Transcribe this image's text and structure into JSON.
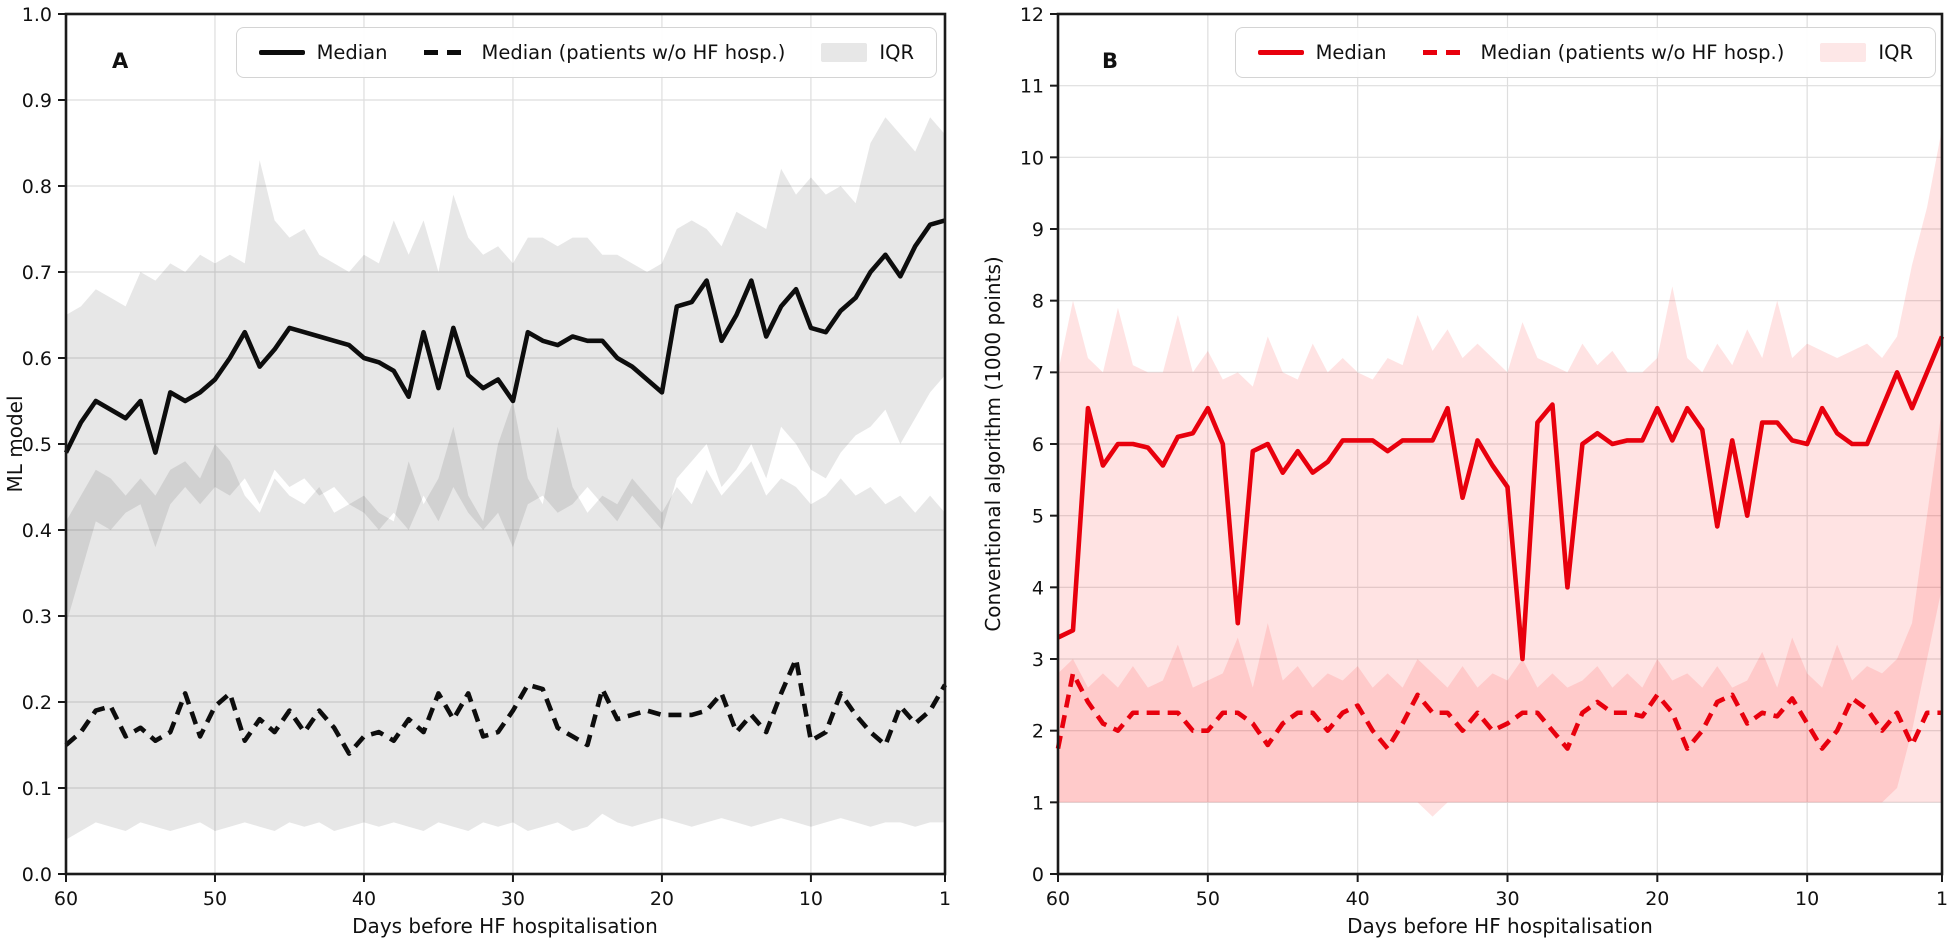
{
  "chart_data": [
    {
      "type": "line",
      "panel_label": "A",
      "xlabel": "Days before HF hospitalisation",
      "ylabel": "ML model",
      "x_reversed": true,
      "xticks": [
        60,
        50,
        40,
        30,
        20,
        10,
        1
      ],
      "ylim": [
        0.0,
        1.0
      ],
      "ytick_step": 0.1,
      "ytick_decimals": 1,
      "grid": true,
      "legend_position": "upper right",
      "legend": [
        {
          "label": "Median",
          "style": "solid"
        },
        {
          "label": "Median (patients w/o HF hosp.)",
          "style": "dashed"
        },
        {
          "label": "IQR",
          "style": "band"
        }
      ],
      "colors": {
        "line": "#0d0d0d",
        "band_fill": "#000000",
        "band_opacity": 0.095,
        "band_swatch": "#e7e7e7"
      },
      "days": [
        60,
        59,
        58,
        57,
        56,
        55,
        54,
        53,
        52,
        51,
        50,
        49,
        48,
        47,
        46,
        45,
        44,
        43,
        42,
        41,
        40,
        39,
        38,
        37,
        36,
        35,
        34,
        33,
        32,
        31,
        30,
        29,
        28,
        27,
        26,
        25,
        24,
        23,
        22,
        21,
        20,
        19,
        18,
        17,
        16,
        15,
        14,
        13,
        12,
        11,
        10,
        9,
        8,
        7,
        6,
        5,
        4,
        3,
        2,
        1
      ],
      "series": [
        {
          "name": "Median",
          "values": [
            0.49,
            0.525,
            0.55,
            0.54,
            0.53,
            0.55,
            0.49,
            0.56,
            0.55,
            0.56,
            0.575,
            0.6,
            0.63,
            0.59,
            0.61,
            0.635,
            0.63,
            0.625,
            0.62,
            0.615,
            0.6,
            0.595,
            0.585,
            0.555,
            0.63,
            0.565,
            0.635,
            0.58,
            0.565,
            0.575,
            0.55,
            0.63,
            0.62,
            0.615,
            0.625,
            0.62,
            0.62,
            0.6,
            0.59,
            0.575,
            0.56,
            0.66,
            0.665,
            0.69,
            0.62,
            0.65,
            0.69,
            0.625,
            0.66,
            0.68,
            0.635,
            0.63,
            0.655,
            0.67,
            0.7,
            0.72,
            0.695,
            0.73,
            0.755,
            0.76
          ]
        },
        {
          "name": "Median (patients w/o HF hosp.)",
          "values": [
            0.15,
            0.165,
            0.19,
            0.195,
            0.16,
            0.17,
            0.155,
            0.165,
            0.21,
            0.16,
            0.195,
            0.21,
            0.155,
            0.18,
            0.165,
            0.19,
            0.165,
            0.19,
            0.17,
            0.14,
            0.16,
            0.165,
            0.155,
            0.18,
            0.165,
            0.21,
            0.18,
            0.21,
            0.16,
            0.165,
            0.19,
            0.22,
            0.215,
            0.17,
            0.16,
            0.15,
            0.215,
            0.18,
            0.185,
            0.19,
            0.185,
            0.185,
            0.185,
            0.19,
            0.21,
            0.165,
            0.185,
            0.165,
            0.21,
            0.25,
            0.155,
            0.165,
            0.21,
            0.185,
            0.165,
            0.15,
            0.195,
            0.175,
            0.19,
            0.22
          ]
        }
      ],
      "iqr_median": {
        "upper": [
          0.65,
          0.66,
          0.68,
          0.67,
          0.66,
          0.7,
          0.69,
          0.71,
          0.7,
          0.72,
          0.71,
          0.72,
          0.71,
          0.83,
          0.76,
          0.74,
          0.75,
          0.72,
          0.71,
          0.7,
          0.72,
          0.71,
          0.76,
          0.72,
          0.76,
          0.7,
          0.79,
          0.74,
          0.72,
          0.73,
          0.71,
          0.74,
          0.74,
          0.73,
          0.74,
          0.74,
          0.72,
          0.72,
          0.71,
          0.7,
          0.71,
          0.75,
          0.76,
          0.75,
          0.73,
          0.77,
          0.76,
          0.75,
          0.82,
          0.79,
          0.81,
          0.79,
          0.8,
          0.78,
          0.85,
          0.88,
          0.86,
          0.84,
          0.88,
          0.86
        ],
        "lower": [
          0.29,
          0.35,
          0.41,
          0.4,
          0.42,
          0.43,
          0.38,
          0.43,
          0.45,
          0.43,
          0.45,
          0.44,
          0.46,
          0.43,
          0.47,
          0.45,
          0.46,
          0.44,
          0.45,
          0.43,
          0.42,
          0.4,
          0.42,
          0.4,
          0.44,
          0.41,
          0.45,
          0.42,
          0.4,
          0.42,
          0.38,
          0.43,
          0.44,
          0.42,
          0.43,
          0.45,
          0.43,
          0.41,
          0.44,
          0.42,
          0.4,
          0.46,
          0.48,
          0.5,
          0.45,
          0.47,
          0.5,
          0.46,
          0.52,
          0.5,
          0.47,
          0.46,
          0.49,
          0.51,
          0.52,
          0.54,
          0.5,
          0.53,
          0.56,
          0.58
        ]
      },
      "iqr_no_hosp": {
        "upper": [
          0.41,
          0.44,
          0.47,
          0.46,
          0.44,
          0.46,
          0.44,
          0.47,
          0.48,
          0.46,
          0.5,
          0.48,
          0.44,
          0.42,
          0.46,
          0.44,
          0.43,
          0.45,
          0.42,
          0.43,
          0.44,
          0.42,
          0.41,
          0.48,
          0.43,
          0.46,
          0.52,
          0.44,
          0.41,
          0.5,
          0.55,
          0.46,
          0.43,
          0.52,
          0.45,
          0.42,
          0.44,
          0.43,
          0.46,
          0.44,
          0.42,
          0.45,
          0.43,
          0.47,
          0.44,
          0.46,
          0.48,
          0.44,
          0.46,
          0.45,
          0.43,
          0.44,
          0.46,
          0.44,
          0.45,
          0.43,
          0.44,
          0.42,
          0.44,
          0.42
        ],
        "lower": [
          0.04,
          0.05,
          0.06,
          0.055,
          0.05,
          0.06,
          0.055,
          0.05,
          0.055,
          0.06,
          0.05,
          0.055,
          0.06,
          0.055,
          0.05,
          0.06,
          0.055,
          0.06,
          0.05,
          0.055,
          0.06,
          0.055,
          0.06,
          0.055,
          0.05,
          0.06,
          0.055,
          0.05,
          0.06,
          0.055,
          0.06,
          0.05,
          0.055,
          0.06,
          0.05,
          0.055,
          0.07,
          0.06,
          0.055,
          0.06,
          0.065,
          0.06,
          0.055,
          0.06,
          0.065,
          0.06,
          0.055,
          0.06,
          0.065,
          0.06,
          0.055,
          0.06,
          0.065,
          0.06,
          0.055,
          0.06,
          0.06,
          0.055,
          0.06,
          0.06
        ]
      }
    },
    {
      "type": "line",
      "panel_label": "B",
      "xlabel": "Days before HF hospitalisation",
      "ylabel": "Conventional algorithm (1000 points)",
      "x_reversed": true,
      "xticks": [
        60,
        50,
        40,
        30,
        20,
        10,
        1
      ],
      "ylim": [
        0,
        12
      ],
      "ytick_step": 1,
      "ytick_decimals": 0,
      "grid": true,
      "legend_position": "upper right",
      "legend": [
        {
          "label": "Median",
          "style": "solid"
        },
        {
          "label": "Median (patients w/o HF hosp.)",
          "style": "dashed"
        },
        {
          "label": "IQR",
          "style": "band"
        }
      ],
      "colors": {
        "line": "#e8000d",
        "band_fill": "#ff0000",
        "band_opacity": 0.11,
        "band_swatch": "#fde7e7"
      },
      "days": [
        60,
        59,
        58,
        57,
        56,
        55,
        54,
        53,
        52,
        51,
        50,
        49,
        48,
        47,
        46,
        45,
        44,
        43,
        42,
        41,
        40,
        39,
        38,
        37,
        36,
        35,
        34,
        33,
        32,
        31,
        30,
        29,
        28,
        27,
        26,
        25,
        24,
        23,
        22,
        21,
        20,
        19,
        18,
        17,
        16,
        15,
        14,
        13,
        12,
        11,
        10,
        9,
        8,
        7,
        6,
        5,
        4,
        3,
        2,
        1
      ],
      "series": [
        {
          "name": "Median",
          "values": [
            3.3,
            3.4,
            6.5,
            5.7,
            6.0,
            6.0,
            5.95,
            5.7,
            6.1,
            6.15,
            6.5,
            6.0,
            3.5,
            5.9,
            6.0,
            5.6,
            5.9,
            5.6,
            5.75,
            6.05,
            6.05,
            6.05,
            5.9,
            6.05,
            6.05,
            6.05,
            6.5,
            5.25,
            6.05,
            5.7,
            5.4,
            3.0,
            6.3,
            6.55,
            4.0,
            6.0,
            6.15,
            6.0,
            6.05,
            6.05,
            6.5,
            6.05,
            6.5,
            6.2,
            4.85,
            6.05,
            5.0,
            6.3,
            6.3,
            6.05,
            6.0,
            6.5,
            6.15,
            6.0,
            6.0,
            6.5,
            7.0,
            6.5,
            7.0,
            7.5
          ]
        },
        {
          "name": "Median (patients w/o HF hosp.)",
          "values": [
            1.75,
            2.8,
            2.4,
            2.1,
            2.0,
            2.25,
            2.25,
            2.25,
            2.25,
            2.0,
            2.0,
            2.25,
            2.25,
            2.1,
            1.8,
            2.1,
            2.25,
            2.25,
            2.0,
            2.25,
            2.35,
            2.0,
            1.75,
            2.1,
            2.5,
            2.25,
            2.25,
            2.0,
            2.25,
            2.0,
            2.1,
            2.25,
            2.25,
            2.0,
            1.75,
            2.25,
            2.4,
            2.25,
            2.25,
            2.2,
            2.5,
            2.25,
            1.75,
            2.0,
            2.4,
            2.5,
            2.1,
            2.25,
            2.2,
            2.45,
            2.1,
            1.75,
            2.0,
            2.45,
            2.3,
            2.0,
            2.25,
            1.8,
            2.25,
            2.25
          ]
        }
      ],
      "iqr_median": {
        "upper": [
          7.0,
          8.0,
          7.2,
          7.0,
          7.9,
          7.1,
          7.0,
          7.0,
          7.8,
          7.0,
          7.3,
          6.9,
          7.0,
          6.8,
          7.5,
          7.0,
          6.9,
          7.4,
          7.0,
          7.2,
          7.0,
          6.9,
          7.2,
          7.1,
          7.8,
          7.3,
          7.6,
          7.2,
          7.4,
          7.2,
          7.0,
          7.7,
          7.2,
          7.1,
          7.0,
          7.4,
          7.1,
          7.3,
          7.0,
          7.0,
          7.2,
          8.2,
          7.2,
          7.0,
          7.4,
          7.1,
          7.6,
          7.2,
          8.0,
          7.2,
          7.4,
          7.3,
          7.2,
          7.3,
          7.4,
          7.2,
          7.5,
          8.5,
          9.3,
          10.4
        ],
        "lower": [
          1,
          1,
          1,
          1,
          1,
          1,
          1,
          1,
          1,
          1,
          1,
          1,
          1,
          1,
          1,
          1,
          1,
          1,
          1,
          1,
          1,
          1,
          1,
          1,
          1,
          0.8,
          1,
          1,
          1,
          1,
          1,
          1,
          1,
          1,
          1,
          1,
          1,
          1,
          1,
          1,
          1,
          1,
          1,
          1,
          1,
          1,
          1,
          1,
          1,
          1,
          1,
          1,
          1,
          1,
          1,
          1,
          1.2,
          2.0,
          3.0,
          4.0
        ]
      },
      "iqr_no_hosp": {
        "upper": [
          2.8,
          3.0,
          2.6,
          2.8,
          2.6,
          2.9,
          2.6,
          2.7,
          3.2,
          2.6,
          2.7,
          2.8,
          3.3,
          2.6,
          3.5,
          2.7,
          2.9,
          2.6,
          2.8,
          2.7,
          2.9,
          2.6,
          2.8,
          2.6,
          3.0,
          2.8,
          2.6,
          2.9,
          2.6,
          2.8,
          2.7,
          3.0,
          2.6,
          2.8,
          2.6,
          2.7,
          2.9,
          2.6,
          2.8,
          2.6,
          3.0,
          2.7,
          2.8,
          2.6,
          2.9,
          2.6,
          2.7,
          3.1,
          2.6,
          3.3,
          2.8,
          2.6,
          3.2,
          2.7,
          2.9,
          2.8,
          3.0,
          3.5,
          5.0,
          6.5
        ],
        "lower": [
          1,
          1,
          1,
          1,
          1,
          1,
          1,
          1,
          1,
          1,
          1,
          1,
          1,
          1,
          1,
          1,
          1,
          1,
          1,
          1,
          1,
          1,
          1,
          1,
          1,
          1,
          1,
          1,
          1,
          1,
          1,
          1,
          1,
          1,
          1,
          1,
          1,
          1,
          1,
          1,
          1,
          1,
          1,
          1,
          1,
          1,
          1,
          1,
          1,
          1,
          1,
          1,
          1,
          1,
          1,
          1,
          1,
          1,
          1,
          1
        ]
      }
    }
  ]
}
